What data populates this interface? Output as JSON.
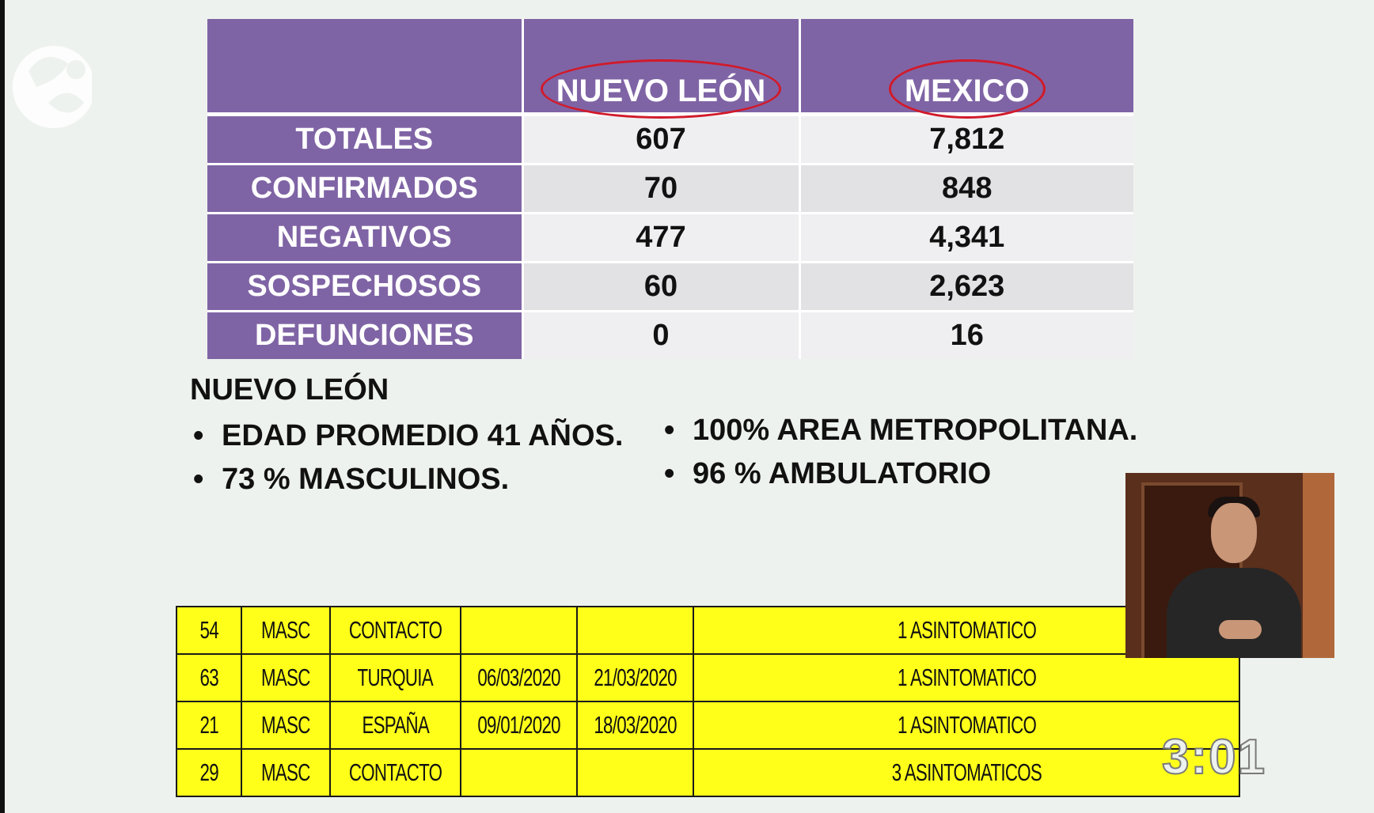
{
  "summary_table": {
    "columns": [
      "NUEVO LEÓN",
      "MEXICO"
    ],
    "rows": [
      {
        "label": "TOTALES",
        "nuevo_leon": "607",
        "mexico": "7,812"
      },
      {
        "label": "CONFIRMADOS",
        "nuevo_leon": "70",
        "mexico": "848"
      },
      {
        "label": "NEGATIVOS",
        "nuevo_leon": "477",
        "mexico": "4,341"
      },
      {
        "label": "SOSPECHOSOS",
        "nuevo_leon": "60",
        "mexico": "2,623"
      },
      {
        "label": "DEFUNCIONES",
        "nuevo_leon": "0",
        "mexico": "16"
      }
    ],
    "highlight_color": "#d11a2a",
    "header_color": "#7f64a5"
  },
  "notes": {
    "title": "NUEVO LEÓN",
    "left": [
      "EDAD PROMEDIO 41 AÑOS.",
      "73 % MASCULINOS."
    ],
    "right": [
      "100% AREA METROPOLITANA.",
      "96 % AMBULATORIO"
    ]
  },
  "cases_table": {
    "rows": [
      [
        "54",
        "MASC",
        "CONTACTO",
        "",
        "",
        "1 ASINTOMATICO"
      ],
      [
        "63",
        "MASC",
        "TURQUIA",
        "06/03/2020",
        "21/03/2020",
        "1 ASINTOMATICO"
      ],
      [
        "21",
        "MASC",
        "ESPAÑA",
        "09/01/2020",
        "18/03/2020",
        "1 ASINTOMATICO"
      ],
      [
        "29",
        "MASC",
        "CONTACTO",
        "",
        "",
        "3 ASINTOMATICOS"
      ]
    ],
    "background_color": "#ffff1a"
  },
  "overlay": {
    "timer": "3:01",
    "logo_icon": "channel-28-logo-icon",
    "interpreter": "sign-language-interpreter-video"
  }
}
